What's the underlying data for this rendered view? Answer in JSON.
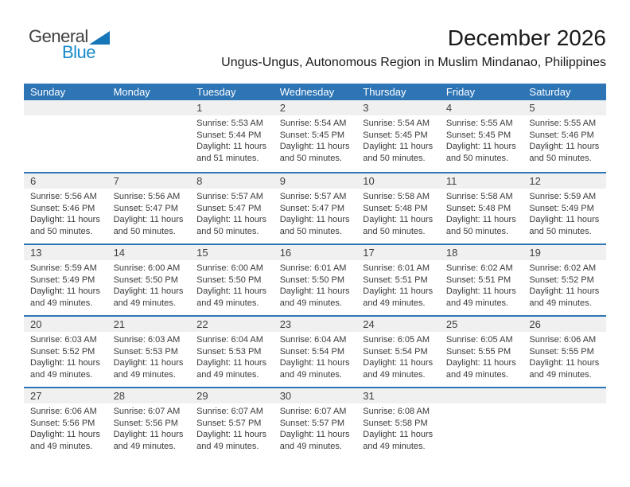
{
  "logo": {
    "word1": "General",
    "word2": "Blue"
  },
  "header": {
    "title": "December 2026",
    "subtitle": "Ungus-Ungus, Autonomous Region in Muslim Mindanao, Philippines"
  },
  "colors": {
    "header_bg": "#2E75B6",
    "header_text": "#FFFFFF",
    "divider": "#2E75B6",
    "band_bg": "#F0F0F0",
    "text": "#3A3A3A",
    "daynum_text": "#404040",
    "title_text": "#1A1A1A",
    "logo_dark": "#3F3F3F",
    "logo_blue": "#1589CB",
    "triangle_blue": "#1577B8"
  },
  "calendar": {
    "weekdays": [
      "Sunday",
      "Monday",
      "Tuesday",
      "Wednesday",
      "Thursday",
      "Friday",
      "Saturday"
    ],
    "weeks": [
      [
        {
          "day": "",
          "lines": []
        },
        {
          "day": "",
          "lines": []
        },
        {
          "day": "1",
          "lines": [
            "Sunrise: 5:53 AM",
            "Sunset: 5:44 PM",
            "Daylight: 11 hours",
            "and 51 minutes."
          ]
        },
        {
          "day": "2",
          "lines": [
            "Sunrise: 5:54 AM",
            "Sunset: 5:45 PM",
            "Daylight: 11 hours",
            "and 50 minutes."
          ]
        },
        {
          "day": "3",
          "lines": [
            "Sunrise: 5:54 AM",
            "Sunset: 5:45 PM",
            "Daylight: 11 hours",
            "and 50 minutes."
          ]
        },
        {
          "day": "4",
          "lines": [
            "Sunrise: 5:55 AM",
            "Sunset: 5:45 PM",
            "Daylight: 11 hours",
            "and 50 minutes."
          ]
        },
        {
          "day": "5",
          "lines": [
            "Sunrise: 5:55 AM",
            "Sunset: 5:46 PM",
            "Daylight: 11 hours",
            "and 50 minutes."
          ]
        }
      ],
      [
        {
          "day": "6",
          "lines": [
            "Sunrise: 5:56 AM",
            "Sunset: 5:46 PM",
            "Daylight: 11 hours",
            "and 50 minutes."
          ]
        },
        {
          "day": "7",
          "lines": [
            "Sunrise: 5:56 AM",
            "Sunset: 5:47 PM",
            "Daylight: 11 hours",
            "and 50 minutes."
          ]
        },
        {
          "day": "8",
          "lines": [
            "Sunrise: 5:57 AM",
            "Sunset: 5:47 PM",
            "Daylight: 11 hours",
            "and 50 minutes."
          ]
        },
        {
          "day": "9",
          "lines": [
            "Sunrise: 5:57 AM",
            "Sunset: 5:47 PM",
            "Daylight: 11 hours",
            "and 50 minutes."
          ]
        },
        {
          "day": "10",
          "lines": [
            "Sunrise: 5:58 AM",
            "Sunset: 5:48 PM",
            "Daylight: 11 hours",
            "and 50 minutes."
          ]
        },
        {
          "day": "11",
          "lines": [
            "Sunrise: 5:58 AM",
            "Sunset: 5:48 PM",
            "Daylight: 11 hours",
            "and 50 minutes."
          ]
        },
        {
          "day": "12",
          "lines": [
            "Sunrise: 5:59 AM",
            "Sunset: 5:49 PM",
            "Daylight: 11 hours",
            "and 50 minutes."
          ]
        }
      ],
      [
        {
          "day": "13",
          "lines": [
            "Sunrise: 5:59 AM",
            "Sunset: 5:49 PM",
            "Daylight: 11 hours",
            "and 49 minutes."
          ]
        },
        {
          "day": "14",
          "lines": [
            "Sunrise: 6:00 AM",
            "Sunset: 5:50 PM",
            "Daylight: 11 hours",
            "and 49 minutes."
          ]
        },
        {
          "day": "15",
          "lines": [
            "Sunrise: 6:00 AM",
            "Sunset: 5:50 PM",
            "Daylight: 11 hours",
            "and 49 minutes."
          ]
        },
        {
          "day": "16",
          "lines": [
            "Sunrise: 6:01 AM",
            "Sunset: 5:50 PM",
            "Daylight: 11 hours",
            "and 49 minutes."
          ]
        },
        {
          "day": "17",
          "lines": [
            "Sunrise: 6:01 AM",
            "Sunset: 5:51 PM",
            "Daylight: 11 hours",
            "and 49 minutes."
          ]
        },
        {
          "day": "18",
          "lines": [
            "Sunrise: 6:02 AM",
            "Sunset: 5:51 PM",
            "Daylight: 11 hours",
            "and 49 minutes."
          ]
        },
        {
          "day": "19",
          "lines": [
            "Sunrise: 6:02 AM",
            "Sunset: 5:52 PM",
            "Daylight: 11 hours",
            "and 49 minutes."
          ]
        }
      ],
      [
        {
          "day": "20",
          "lines": [
            "Sunrise: 6:03 AM",
            "Sunset: 5:52 PM",
            "Daylight: 11 hours",
            "and 49 minutes."
          ]
        },
        {
          "day": "21",
          "lines": [
            "Sunrise: 6:03 AM",
            "Sunset: 5:53 PM",
            "Daylight: 11 hours",
            "and 49 minutes."
          ]
        },
        {
          "day": "22",
          "lines": [
            "Sunrise: 6:04 AM",
            "Sunset: 5:53 PM",
            "Daylight: 11 hours",
            "and 49 minutes."
          ]
        },
        {
          "day": "23",
          "lines": [
            "Sunrise: 6:04 AM",
            "Sunset: 5:54 PM",
            "Daylight: 11 hours",
            "and 49 minutes."
          ]
        },
        {
          "day": "24",
          "lines": [
            "Sunrise: 6:05 AM",
            "Sunset: 5:54 PM",
            "Daylight: 11 hours",
            "and 49 minutes."
          ]
        },
        {
          "day": "25",
          "lines": [
            "Sunrise: 6:05 AM",
            "Sunset: 5:55 PM",
            "Daylight: 11 hours",
            "and 49 minutes."
          ]
        },
        {
          "day": "26",
          "lines": [
            "Sunrise: 6:06 AM",
            "Sunset: 5:55 PM",
            "Daylight: 11 hours",
            "and 49 minutes."
          ]
        }
      ],
      [
        {
          "day": "27",
          "lines": [
            "Sunrise: 6:06 AM",
            "Sunset: 5:56 PM",
            "Daylight: 11 hours",
            "and 49 minutes."
          ]
        },
        {
          "day": "28",
          "lines": [
            "Sunrise: 6:07 AM",
            "Sunset: 5:56 PM",
            "Daylight: 11 hours",
            "and 49 minutes."
          ]
        },
        {
          "day": "29",
          "lines": [
            "Sunrise: 6:07 AM",
            "Sunset: 5:57 PM",
            "Daylight: 11 hours",
            "and 49 minutes."
          ]
        },
        {
          "day": "30",
          "lines": [
            "Sunrise: 6:07 AM",
            "Sunset: 5:57 PM",
            "Daylight: 11 hours",
            "and 49 minutes."
          ]
        },
        {
          "day": "31",
          "lines": [
            "Sunrise: 6:08 AM",
            "Sunset: 5:58 PM",
            "Daylight: 11 hours",
            "and 49 minutes."
          ]
        },
        {
          "day": "",
          "lines": []
        },
        {
          "day": "",
          "lines": []
        }
      ]
    ]
  }
}
